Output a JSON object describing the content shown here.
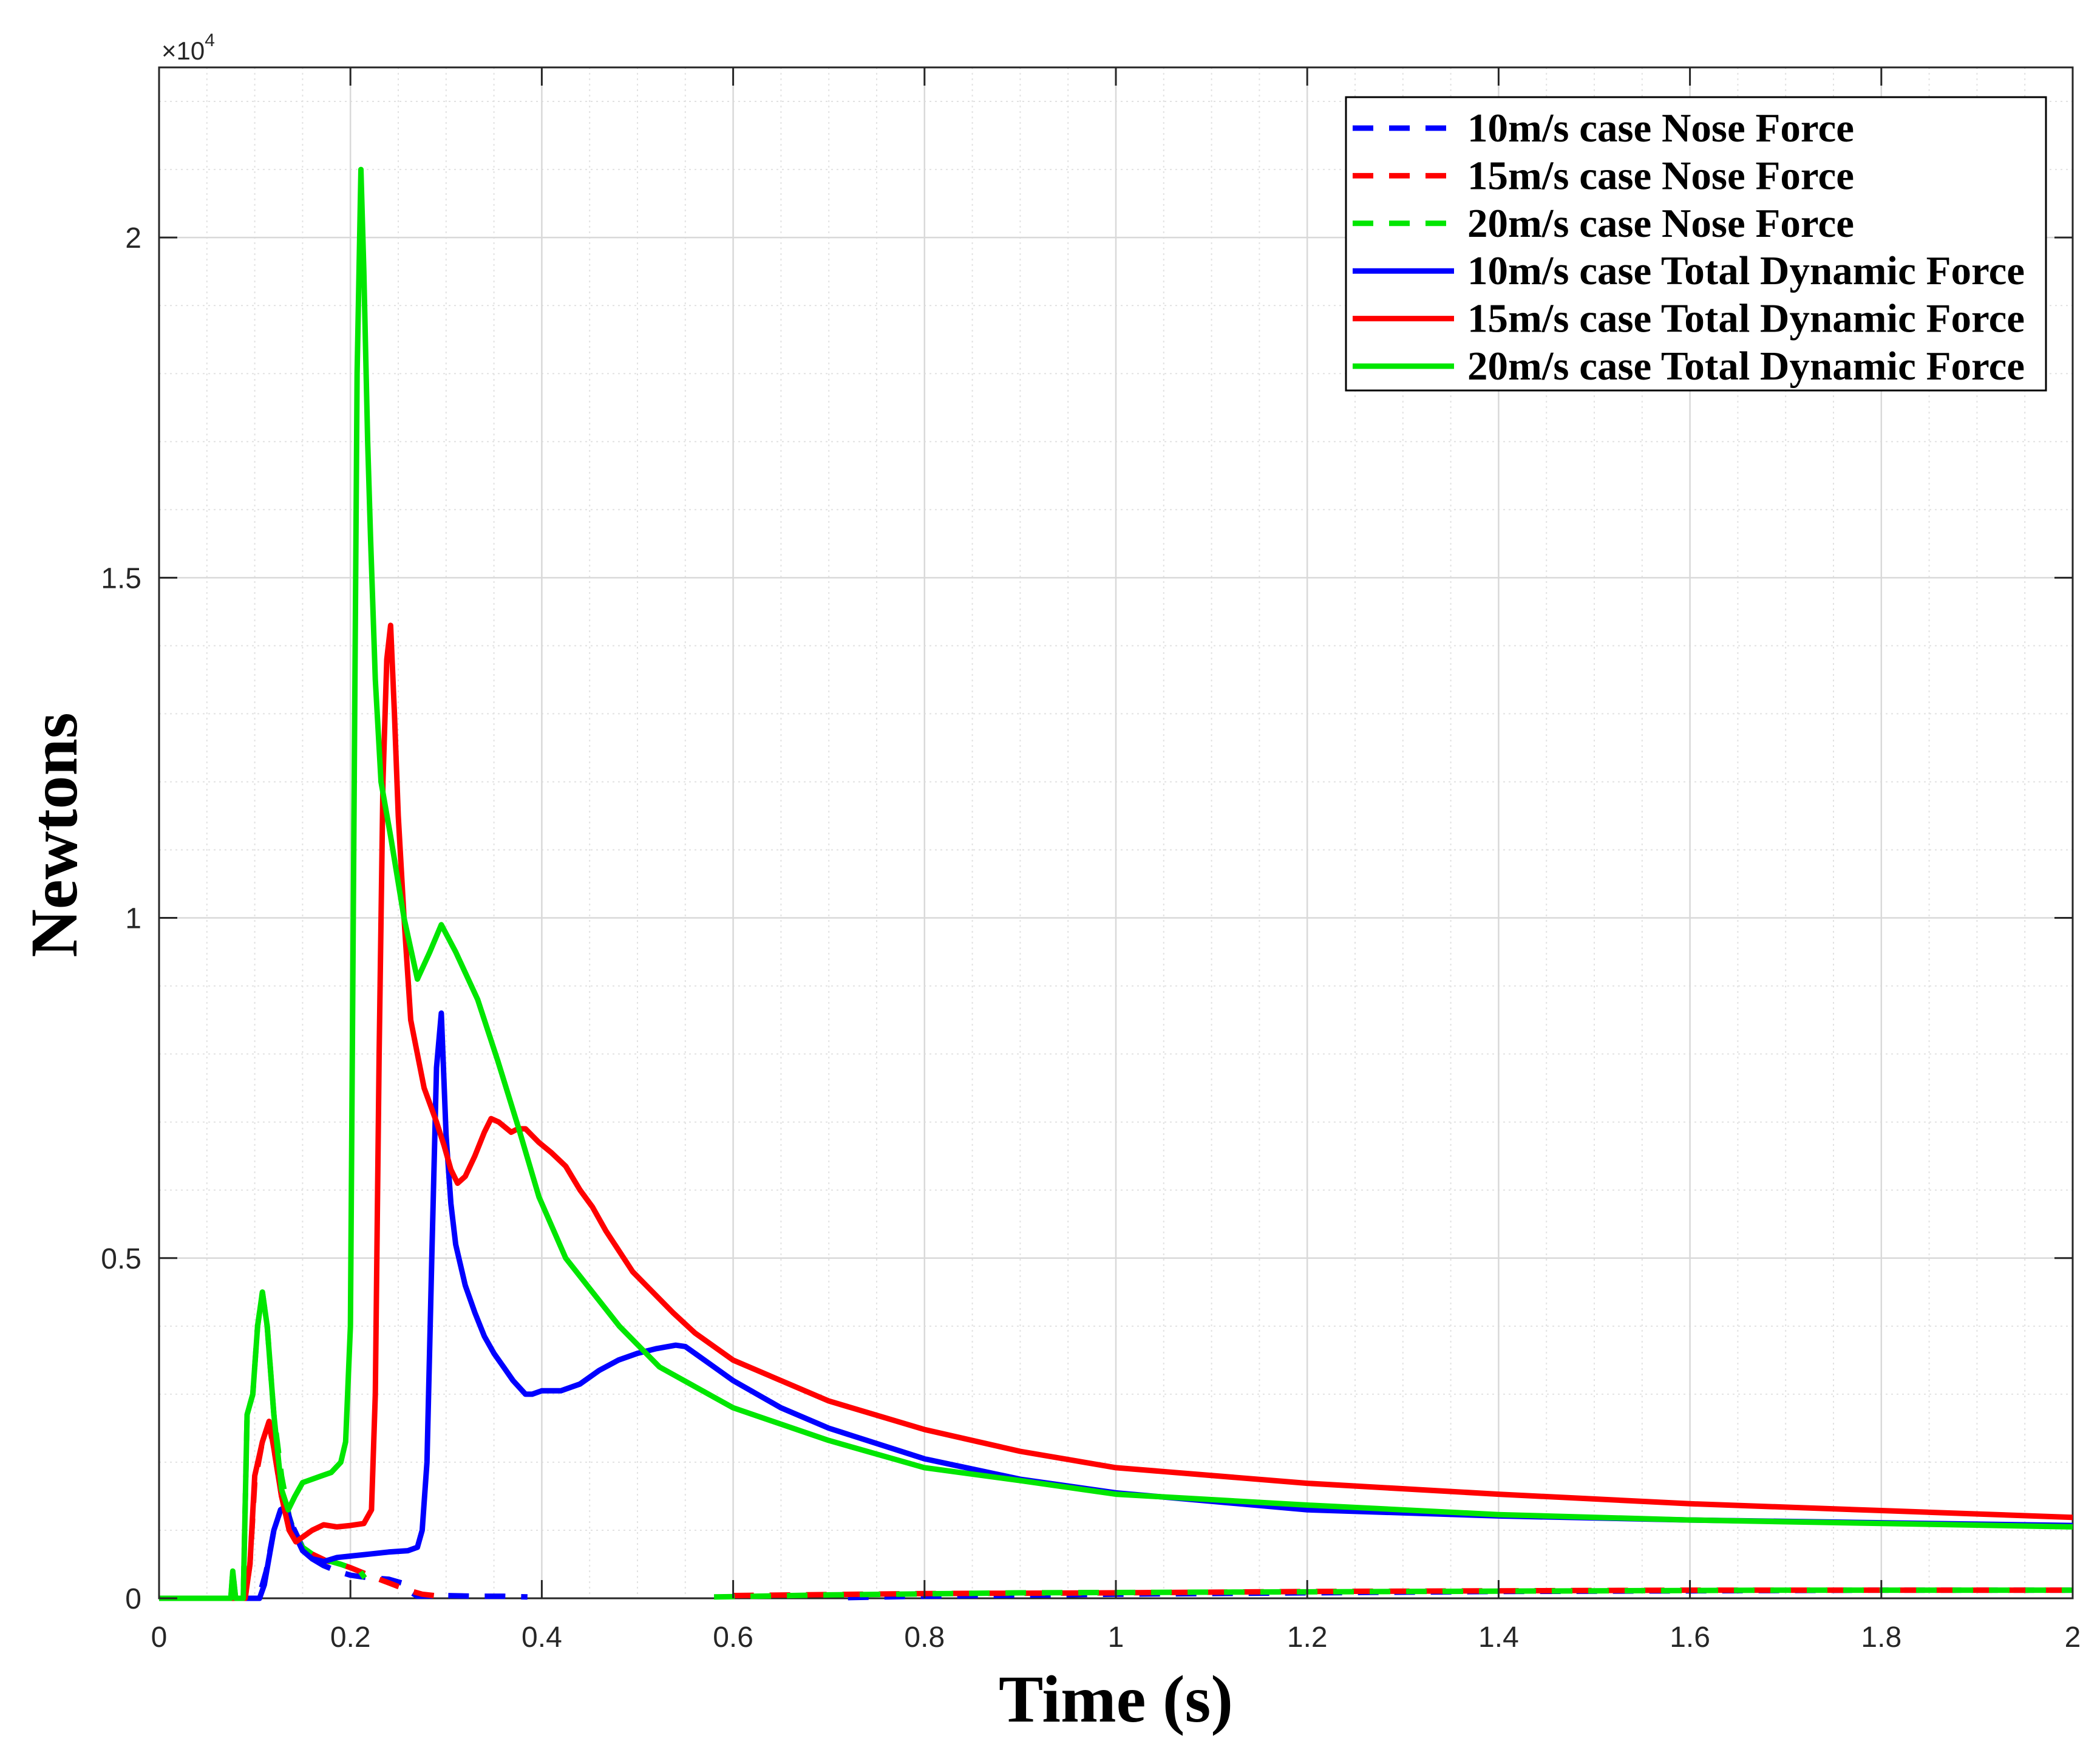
{
  "chart_data": {
    "type": "line",
    "title": "",
    "xlabel": "Time (s)",
    "ylabel": "Newtons",
    "y_multiplier": {
      "base": "×10",
      "exponent": "4"
    },
    "xlim": [
      0,
      2
    ],
    "ylim": [
      0,
      2.25
    ],
    "xticks": [
      0,
      0.2,
      0.4,
      0.6,
      0.8,
      1,
      1.2,
      1.4,
      1.6,
      1.8,
      2
    ],
    "xtick_labels": [
      "0",
      "0.2",
      "0.4",
      "0.6",
      "0.8",
      "1",
      "1.2",
      "1.4",
      "1.6",
      "1.8",
      "2"
    ],
    "yticks": [
      0,
      0.5,
      1,
      1.5,
      2
    ],
    "ytick_labels": [
      "0",
      "0.5",
      "1",
      "1.5",
      "2"
    ],
    "grid": true,
    "minor_grid": true,
    "legend_position": "top-right",
    "series": [
      {
        "name": "10m/s case Nose Force",
        "color": "#0000FF",
        "style": "dashed",
        "x": [
          0,
          0.1,
          0.105,
          0.112,
          0.12,
          0.127,
          0.133,
          0.14,
          0.15,
          0.16,
          0.172,
          0.186,
          0.2,
          0.22,
          0.24,
          0.255,
          0.262,
          0.27,
          0.3,
          0.33,
          0.36,
          0.385,
          0.39,
          0.72,
          0.8,
          1.0,
          1.2,
          1.4,
          1.6,
          1.8,
          2.0
        ],
        "y": [
          0,
          0,
          0.005,
          0.04,
          0.1,
          0.13,
          0.135,
          0.105,
          0.075,
          0.058,
          0.048,
          0.04,
          0.034,
          0.03,
          0.028,
          0.022,
          0.01,
          0.003,
          0.004,
          0.003,
          0.003,
          0.002,
          null,
          0.001,
          0.003,
          0.006,
          0.008,
          0.01,
          0.011,
          0.012,
          0.012
        ]
      },
      {
        "name": "15m/s case Nose Force",
        "color": "#FF0000",
        "style": "dashed",
        "x": [
          0,
          0.09,
          0.095,
          0.1,
          0.108,
          0.115,
          0.12,
          0.128,
          0.136,
          0.143,
          0.15,
          0.16,
          0.175,
          0.19,
          0.2,
          0.214,
          0.23,
          0.245,
          0.26,
          0.275,
          0.3,
          0.31,
          0.6,
          0.8,
          1.0,
          1.2,
          1.4,
          1.6,
          1.8,
          2.0
        ],
        "y": [
          0,
          0,
          0.05,
          0.17,
          0.23,
          0.255,
          0.22,
          0.15,
          0.11,
          0.09,
          0.08,
          0.065,
          0.055,
          0.05,
          0.045,
          0.037,
          0.028,
          0.02,
          0.012,
          0.006,
          0.002,
          null,
          0.004,
          0.007,
          0.008,
          0.01,
          0.011,
          0.012,
          0.012,
          0.012
        ]
      },
      {
        "name": "20m/s case Nose Force",
        "color": "#00E600",
        "style": "dashed",
        "x": [
          0,
          0.075,
          0.077,
          0.08,
          0.088,
          0.092,
          0.098,
          0.103,
          0.108,
          0.113,
          0.12,
          0.128,
          0.136,
          0.143,
          0.15,
          0.16,
          0.17,
          0.18,
          0.19,
          0.2,
          0.21,
          0.215,
          0.22,
          0.58,
          0.7,
          0.9,
          1.1,
          1.3,
          1.5,
          1.7,
          2.0
        ],
        "y": [
          0,
          0,
          0.04,
          0,
          0,
          0.27,
          0.3,
          0.4,
          0.45,
          0.4,
          0.27,
          0.18,
          0.12,
          0.09,
          0.075,
          0.065,
          0.058,
          0.054,
          0.05,
          0.045,
          0.04,
          0.03,
          null,
          0.002,
          0.005,
          0.008,
          0.009,
          0.01,
          0.011,
          0.012,
          0.012
        ]
      },
      {
        "name": "10m/s case Total Dynamic Force",
        "color": "#0000FF",
        "style": "solid",
        "x": [
          0,
          0.105,
          0.11,
          0.115,
          0.12,
          0.127,
          0.133,
          0.14,
          0.15,
          0.16,
          0.172,
          0.186,
          0.2,
          0.22,
          0.24,
          0.26,
          0.27,
          0.275,
          0.28,
          0.285,
          0.29,
          0.295,
          0.3,
          0.305,
          0.31,
          0.32,
          0.33,
          0.34,
          0.35,
          0.36,
          0.37,
          0.383,
          0.39,
          0.4,
          0.42,
          0.44,
          0.46,
          0.48,
          0.5,
          0.52,
          0.54,
          0.55,
          0.56,
          0.58,
          0.6,
          0.65,
          0.7,
          0.8,
          0.9,
          1.0,
          1.2,
          1.4,
          1.6,
          1.8,
          2.0
        ],
        "y": [
          0,
          0,
          0.02,
          0.06,
          0.1,
          0.13,
          0.135,
          0.1,
          0.07,
          0.058,
          0.054,
          0.06,
          0.062,
          0.065,
          0.068,
          0.07,
          0.075,
          0.1,
          0.2,
          0.5,
          0.78,
          0.86,
          0.68,
          0.58,
          0.52,
          0.46,
          0.42,
          0.385,
          0.36,
          0.34,
          0.32,
          0.3,
          0.3,
          0.305,
          0.305,
          0.315,
          0.335,
          0.35,
          0.36,
          0.367,
          0.372,
          0.37,
          0.36,
          0.34,
          0.32,
          0.28,
          0.25,
          0.205,
          0.175,
          0.155,
          0.13,
          0.121,
          0.115,
          0.111,
          0.107
        ]
      },
      {
        "name": "15m/s case Total Dynamic Force",
        "color": "#FF0000",
        "style": "solid",
        "x": [
          0,
          0.09,
          0.095,
          0.1,
          0.108,
          0.115,
          0.12,
          0.128,
          0.136,
          0.143,
          0.15,
          0.16,
          0.172,
          0.186,
          0.2,
          0.214,
          0.222,
          0.226,
          0.23,
          0.234,
          0.238,
          0.242,
          0.246,
          0.25,
          0.256,
          0.263,
          0.27,
          0.277,
          0.29,
          0.298,
          0.305,
          0.312,
          0.32,
          0.33,
          0.34,
          0.347,
          0.355,
          0.368,
          0.375,
          0.383,
          0.39,
          0.397,
          0.41,
          0.425,
          0.44,
          0.453,
          0.467,
          0.481,
          0.495,
          0.509,
          0.537,
          0.56,
          0.6,
          0.65,
          0.7,
          0.8,
          0.9,
          1.0,
          1.2,
          1.4,
          1.6,
          1.8,
          2.0
        ],
        "y": [
          0,
          0,
          0.05,
          0.18,
          0.23,
          0.26,
          0.22,
          0.15,
          0.1,
          0.083,
          0.09,
          0.1,
          0.108,
          0.105,
          0.107,
          0.11,
          0.13,
          0.3,
          0.8,
          1.2,
          1.38,
          1.43,
          1.3,
          1.15,
          1.0,
          0.85,
          0.8,
          0.75,
          0.7,
          0.665,
          0.63,
          0.61,
          0.62,
          0.65,
          0.685,
          0.705,
          0.7,
          0.685,
          0.69,
          0.69,
          0.68,
          0.67,
          0.655,
          0.635,
          0.6,
          0.575,
          0.54,
          0.51,
          0.48,
          0.46,
          0.42,
          0.39,
          0.35,
          0.32,
          0.29,
          0.248,
          0.216,
          0.192,
          0.169,
          0.153,
          0.139,
          0.129,
          0.119
        ]
      },
      {
        "name": "20m/s case Total Dynamic Force",
        "color": "#00E600",
        "style": "solid",
        "x": [
          0,
          0.075,
          0.077,
          0.08,
          0.088,
          0.092,
          0.098,
          0.103,
          0.108,
          0.113,
          0.12,
          0.128,
          0.135,
          0.142,
          0.15,
          0.16,
          0.17,
          0.18,
          0.19,
          0.195,
          0.2,
          0.203,
          0.207,
          0.211,
          0.214,
          0.218,
          0.221,
          0.226,
          0.232,
          0.242,
          0.256,
          0.27,
          0.283,
          0.295,
          0.31,
          0.333,
          0.354,
          0.376,
          0.397,
          0.425,
          0.453,
          0.481,
          0.523,
          0.6,
          0.7,
          0.8,
          0.9,
          1.0,
          1.2,
          1.4,
          1.6,
          1.8,
          2.0
        ],
        "y": [
          0,
          0,
          0.04,
          0,
          0,
          0.27,
          0.3,
          0.4,
          0.45,
          0.4,
          0.27,
          0.16,
          0.13,
          0.15,
          0.17,
          0.175,
          0.18,
          0.185,
          0.2,
          0.23,
          0.4,
          1.0,
          1.8,
          2.1,
          1.95,
          1.7,
          1.56,
          1.35,
          1.2,
          1.12,
          1.0,
          0.91,
          0.95,
          0.99,
          0.95,
          0.88,
          0.79,
          0.69,
          0.59,
          0.5,
          0.45,
          0.4,
          0.34,
          0.28,
          0.232,
          0.192,
          0.173,
          0.153,
          0.137,
          0.123,
          0.115,
          0.11,
          0.105
        ]
      }
    ]
  }
}
